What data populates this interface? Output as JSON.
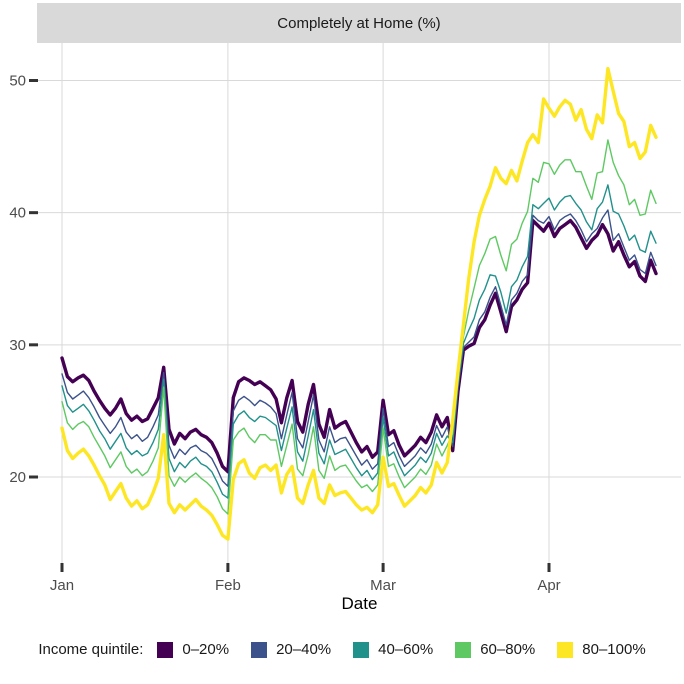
{
  "strip": {
    "title": "Completely at Home (%)"
  },
  "chart_data": {
    "type": "line",
    "title": "Completely at Home (%)",
    "xlabel": "Date",
    "ylabel": "",
    "x_unit": "daily, Jan 1 to Apr 21, 2020",
    "x_ticks": [
      {
        "label": "Jan",
        "day": 1
      },
      {
        "label": "Feb",
        "day": 32
      },
      {
        "label": "Mar",
        "day": 61
      },
      {
        "label": "Apr",
        "day": 92
      }
    ],
    "y_ticks": [
      20,
      30,
      40,
      50
    ],
    "ylim": [
      14.8,
      52.0
    ],
    "grid": "major-only",
    "legend_title": "Income quintile:",
    "legend_position": "bottom",
    "series": [
      {
        "name": "0–20%",
        "color": "#440154",
        "emphasized": true,
        "values": [
          29,
          27.6,
          27.2,
          27.5,
          27.7,
          27.3,
          26.5,
          25.8,
          25.2,
          24.7,
          25.2,
          25.9,
          24.8,
          24.3,
          24.6,
          24.2,
          24.4,
          25.2,
          26,
          28.3,
          23.6,
          22.5,
          23.3,
          22.9,
          23.4,
          23.6,
          23.2,
          23,
          22.6,
          21.8,
          20.8,
          20.4,
          26,
          27.2,
          27.5,
          27.3,
          27,
          27.2,
          26.9,
          26.6,
          25.9,
          24.1,
          26,
          27.3,
          24.2,
          23.4,
          25.5,
          27,
          24,
          23,
          25.1,
          23.7,
          24,
          24.2,
          23.4,
          22.6,
          21.9,
          22.3,
          21.5,
          21.9,
          25.8,
          23.2,
          23.5,
          22.4,
          21.6,
          22,
          22.4,
          23,
          22.6,
          23.4,
          24.7,
          23.8,
          24.5,
          22,
          26.5,
          29.6,
          29.9,
          30.1,
          31.3,
          31.9,
          33,
          33.9,
          32.5,
          31,
          32.9,
          33.4,
          34.2,
          34.7,
          39.4,
          39,
          38.6,
          39.2,
          38.2,
          38.8,
          39.1,
          39.4,
          38.9,
          38.1,
          37.3,
          37.9,
          38.3,
          39.1,
          38.4,
          37.1,
          37.8,
          36.8,
          35.9,
          36.3,
          35.2,
          34.8,
          36.4,
          35.4
        ]
      },
      {
        "name": "20–40%",
        "color": "#3b528b",
        "emphasized": false,
        "values": [
          27.8,
          26.4,
          25.9,
          26.2,
          26.5,
          26,
          25.3,
          24.5,
          23.9,
          23.3,
          23.8,
          24.5,
          23.4,
          22.9,
          23.2,
          22.7,
          23,
          23.8,
          24.7,
          27.9,
          22.4,
          21.4,
          22.1,
          21.7,
          22.2,
          22.4,
          22,
          21.8,
          21.4,
          20.6,
          19.7,
          19.3,
          25,
          25.8,
          26.1,
          25.8,
          25.4,
          25.8,
          25.6,
          25.3,
          24.8,
          22.9,
          24.7,
          26.4,
          22.9,
          22.2,
          24.2,
          26.2,
          22.8,
          21.9,
          23.8,
          22.6,
          22.9,
          23,
          22.3,
          21.6,
          20.9,
          21.3,
          20.6,
          21,
          25.2,
          22.3,
          22.6,
          21.6,
          20.8,
          21.2,
          21.6,
          22.2,
          21.8,
          22.5,
          23.9,
          23,
          23.8,
          22.3,
          26.7,
          29.8,
          30.2,
          30.6,
          31.9,
          32.5,
          33.6,
          34.4,
          33,
          31.5,
          33.4,
          33.9,
          34.8,
          35.3,
          39.8,
          39.4,
          39.2,
          39.7,
          38.7,
          39.4,
          39.7,
          39.9,
          39.4,
          38.7,
          37.8,
          38.4,
          38.8,
          39.6,
          40.2,
          37.9,
          38.4,
          37.4,
          36.4,
          36.8,
          35.7,
          35.4,
          37,
          36
        ]
      },
      {
        "name": "40–60%",
        "color": "#21918c",
        "emphasized": false,
        "values": [
          26.9,
          25.4,
          24.9,
          25.2,
          25.5,
          25,
          24.3,
          23.5,
          22.9,
          22.1,
          22.7,
          23.3,
          22.2,
          21.7,
          22,
          21.6,
          21.8,
          22.6,
          23.6,
          27.4,
          21.4,
          20.4,
          21.1,
          20.7,
          21.2,
          21.5,
          21,
          20.8,
          20.4,
          19.6,
          18.7,
          18.4,
          24,
          24.7,
          25,
          24.5,
          24.2,
          24.6,
          24.5,
          24.2,
          23.9,
          22,
          23.7,
          25.3,
          21.9,
          21.2,
          23.1,
          25.1,
          21.8,
          21,
          22.8,
          21.7,
          21.9,
          22.1,
          21.4,
          20.7,
          20.1,
          20.5,
          19.8,
          20.3,
          24.5,
          21.6,
          21.9,
          20.9,
          20.1,
          20.5,
          20.9,
          21.5,
          21.1,
          21.8,
          23.3,
          22.4,
          23.1,
          22.6,
          27,
          30.1,
          31.1,
          32,
          33.4,
          34.2,
          35.3,
          35.2,
          34,
          32.4,
          34.4,
          34.9,
          35.9,
          36.7,
          40.6,
          40.3,
          40.7,
          41.1,
          40.2,
          40.8,
          41.2,
          41.3,
          40.7,
          40.2,
          39.3,
          38.7,
          40.3,
          40.8,
          42.1,
          40.1,
          39.9,
          39,
          37.9,
          38.3,
          37.2,
          37,
          38.6,
          37.7
        ]
      },
      {
        "name": "60–80%",
        "color": "#5ec962",
        "emphasized": false,
        "values": [
          25.7,
          24.1,
          23.6,
          24,
          24.2,
          23.8,
          23,
          22.3,
          21.6,
          20.7,
          21.3,
          21.9,
          20.8,
          20.3,
          20.6,
          20.1,
          20.4,
          21.2,
          22.2,
          26.8,
          20.1,
          19.3,
          20,
          19.6,
          20,
          20.3,
          19.9,
          19.6,
          19.2,
          18.5,
          17.6,
          17.2,
          22.8,
          23.4,
          23.7,
          23,
          22.6,
          23.2,
          23.2,
          22.8,
          22.8,
          20.8,
          22.4,
          24,
          20.6,
          20.1,
          21.7,
          23.8,
          20.5,
          19.9,
          21.6,
          20.5,
          20.8,
          20.9,
          20.3,
          19.7,
          19.2,
          19.4,
          18.9,
          19.4,
          23.7,
          20.8,
          21,
          20,
          19.2,
          19.6,
          20,
          20.6,
          20.2,
          20.9,
          22.5,
          21.6,
          22.4,
          23.3,
          27.4,
          30.6,
          32.6,
          34.3,
          36,
          36.9,
          38,
          38.2,
          36.8,
          35.6,
          37.6,
          38,
          39.2,
          40.1,
          42.6,
          42.3,
          43.8,
          43.7,
          42.9,
          43.6,
          44,
          44,
          43.1,
          43.1,
          42,
          41,
          43,
          43.1,
          45.5,
          43.8,
          42.8,
          42.1,
          40.6,
          41,
          39.8,
          39.9,
          41.7,
          40.7
        ]
      },
      {
        "name": "80–100%",
        "color": "#fde725",
        "emphasized": true,
        "values": [
          23.7,
          22,
          21.4,
          21.8,
          22.1,
          21.6,
          20.9,
          20.1,
          19.4,
          18.3,
          18.9,
          19.5,
          18.4,
          17.8,
          18.2,
          17.6,
          17.9,
          18.8,
          19.9,
          23.2,
          18,
          17.3,
          17.9,
          17.5,
          17.9,
          18.3,
          17.8,
          17.5,
          17.1,
          16.4,
          15.6,
          15.3,
          19.8,
          21,
          21.3,
          20.3,
          19.9,
          20.7,
          20.9,
          20.5,
          20.9,
          18.8,
          20.2,
          20.8,
          18.4,
          18,
          19.4,
          20.5,
          18.4,
          18,
          19.4,
          18.6,
          18.8,
          18.9,
          18.4,
          17.9,
          17.5,
          17.7,
          17.3,
          17.9,
          21.5,
          19.3,
          19.5,
          18.6,
          17.8,
          18.2,
          18.6,
          19.2,
          18.8,
          19.4,
          21.1,
          20.3,
          21.1,
          24.3,
          28,
          31.5,
          35,
          37.8,
          39.8,
          41,
          42,
          43.4,
          42.6,
          42.2,
          43.2,
          42.4,
          43.9,
          45.3,
          45.9,
          45.3,
          48.6,
          47.9,
          47.3,
          48,
          48.5,
          48.2,
          47,
          47.8,
          46.3,
          45.6,
          47.4,
          46.8,
          50.9,
          49.2,
          47.5,
          46.9,
          45,
          45.3,
          44.1,
          44.6,
          46.6,
          45.7
        ]
      }
    ],
    "colors": {
      "strip_background": "#d9d9d9",
      "gridline": "#d9d9d9",
      "tick_mark": "#333333",
      "tick_label": "#4d4d4d"
    }
  }
}
